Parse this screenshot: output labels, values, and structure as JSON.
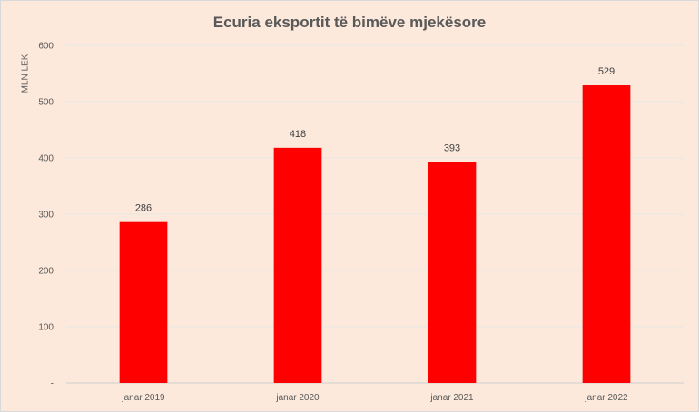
{
  "chart_data": {
    "type": "bar",
    "title": "Ecuria eksportit të bimëve mjekësore",
    "ylabel": "MLN LEK",
    "xlabel": "",
    "categories": [
      "janar 2019",
      "janar 2020",
      "janar 2021",
      "janar 2022"
    ],
    "values": [
      286,
      418,
      393,
      529
    ],
    "data_labels": [
      "286",
      "418",
      "393",
      "529"
    ],
    "ylim": [
      0,
      600
    ],
    "yticks": [
      0,
      100,
      200,
      300,
      400,
      500,
      600
    ],
    "ytick_labels": [
      "-",
      "100",
      "200",
      "300",
      "400",
      "500",
      "600"
    ],
    "grid": true,
    "legend": "none",
    "bar_color": "#ff0000",
    "background_color": "#fce9db"
  }
}
